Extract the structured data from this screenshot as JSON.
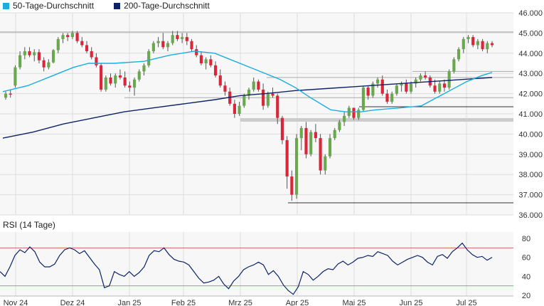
{
  "chart_data": [
    {
      "type": "candlestick",
      "legend": [
        {
          "name": "50-Tage-Durchschnitt",
          "color": "#1aaee0"
        },
        {
          "name": "200-Tage-Durchschnitt",
          "color": "#0d2366"
        }
      ],
      "legend_placement": "top-left",
      "y_axis_side": "right",
      "ylim": [
        36000,
        46000
      ],
      "yticks": [
        "46.000",
        "45.000",
        "44.000",
        "43.000",
        "42.000",
        "41.000",
        "40.000",
        "39.000",
        "38.000",
        "37.000",
        "36.000"
      ],
      "xticks": [
        "Nov 24",
        "Dez 24",
        "Jan 25",
        "Feb 25",
        "Mrz 25",
        "Apr 25",
        "Mai 25",
        "Jun 25",
        "Jul 25"
      ],
      "grid": true,
      "colors": {
        "up": "#6aa84f",
        "down": "#d9263a",
        "wick": "#555555",
        "sma50": "#1aaee0",
        "sma200": "#0d2366",
        "level_line": "#888888"
      },
      "levels": [
        45050,
        43100,
        42800,
        41800,
        41350,
        40700,
        36600
      ],
      "candles": [
        [
          41800,
          42100,
          41700,
          42000
        ],
        [
          42000,
          42200,
          41800,
          41950
        ],
        [
          42400,
          43400,
          42300,
          43300
        ],
        [
          43300,
          44100,
          43200,
          43900
        ],
        [
          43900,
          44300,
          43700,
          44100
        ],
        [
          44100,
          44300,
          43800,
          43900
        ],
        [
          43900,
          44200,
          43600,
          44050
        ],
        [
          44050,
          44200,
          43500,
          43650
        ],
        [
          43650,
          43800,
          43100,
          43300
        ],
        [
          43300,
          43700,
          43200,
          43550
        ],
        [
          43550,
          44200,
          43500,
          44150
        ],
        [
          44150,
          44800,
          44000,
          44700
        ],
        [
          44700,
          45000,
          44500,
          44900
        ],
        [
          44900,
          45000,
          44600,
          44800
        ],
        [
          44800,
          45100,
          44700,
          45000
        ],
        [
          45000,
          45100,
          44500,
          44600
        ],
        [
          44600,
          44800,
          44300,
          44400
        ],
        [
          44400,
          44600,
          44000,
          44100
        ],
        [
          44100,
          44300,
          43700,
          43800
        ],
        [
          43800,
          44000,
          43300,
          43400
        ],
        [
          43400,
          43500,
          42100,
          42200
        ],
        [
          42200,
          42900,
          42100,
          42800
        ],
        [
          42800,
          43000,
          42400,
          42500
        ],
        [
          42500,
          43000,
          42300,
          42900
        ],
        [
          42900,
          43200,
          42700,
          42800
        ],
        [
          42800,
          43100,
          42300,
          42400
        ],
        [
          42400,
          42600,
          42100,
          42300
        ],
        [
          42300,
          42800,
          41900,
          42700
        ],
        [
          42700,
          43200,
          42600,
          43100
        ],
        [
          43100,
          43500,
          42900,
          43400
        ],
        [
          43400,
          44200,
          43300,
          44100
        ],
        [
          44100,
          44600,
          44000,
          44500
        ],
        [
          44500,
          44800,
          44300,
          44600
        ],
        [
          44600,
          45000,
          44200,
          44300
        ],
        [
          44300,
          44600,
          44100,
          44500
        ],
        [
          44500,
          45100,
          44400,
          44900
        ],
        [
          44900,
          45100,
          44600,
          44700
        ],
        [
          44700,
          45000,
          44500,
          44800
        ],
        [
          44800,
          45000,
          44400,
          44600
        ],
        [
          44600,
          44700,
          44100,
          44200
        ],
        [
          44200,
          44400,
          43800,
          43900
        ],
        [
          43900,
          44100,
          43400,
          43500
        ],
        [
          43500,
          43800,
          43200,
          43700
        ],
        [
          43700,
          43900,
          43300,
          43400
        ],
        [
          43400,
          43600,
          42800,
          42900
        ],
        [
          42900,
          43200,
          42300,
          42400
        ],
        [
          42400,
          42600,
          41900,
          42100
        ],
        [
          42100,
          42300,
          41400,
          41500
        ],
        [
          41500,
          41700,
          40800,
          41000
        ],
        [
          41000,
          41600,
          40900,
          41400
        ],
        [
          41400,
          42000,
          41300,
          41900
        ],
        [
          41900,
          42300,
          41700,
          42200
        ],
        [
          42200,
          42800,
          42100,
          42600
        ],
        [
          42600,
          42700,
          42100,
          42200
        ],
        [
          42200,
          42500,
          41200,
          41400
        ],
        [
          41400,
          42100,
          41300,
          42000
        ],
        [
          42000,
          42300,
          41800,
          41900
        ],
        [
          41900,
          42000,
          40500,
          40800
        ],
        [
          40800,
          40900,
          39500,
          39700
        ],
        [
          39700,
          39900,
          37300,
          37900
        ],
        [
          37900,
          38200,
          36700,
          37000
        ],
        [
          37000,
          40000,
          36800,
          39800
        ],
        [
          39800,
          40400,
          39200,
          40300
        ],
        [
          40300,
          40600,
          38800,
          39000
        ],
        [
          39000,
          40200,
          38900,
          40100
        ],
        [
          40100,
          40500,
          39600,
          39800
        ],
        [
          39800,
          40000,
          38000,
          38200
        ],
        [
          38200,
          39000,
          38000,
          38900
        ],
        [
          38900,
          40000,
          38800,
          39800
        ],
        [
          39800,
          40300,
          39700,
          40200
        ],
        [
          40200,
          40700,
          40100,
          40600
        ],
        [
          40600,
          41100,
          40400,
          40900
        ],
        [
          40900,
          41400,
          40800,
          41300
        ],
        [
          41300,
          41300,
          40700,
          40800
        ],
        [
          40800,
          41300,
          40700,
          41200
        ],
        [
          41200,
          42400,
          41100,
          42300
        ],
        [
          42300,
          42400,
          41700,
          41900
        ],
        [
          41900,
          42600,
          41800,
          42500
        ],
        [
          42500,
          42800,
          42300,
          42700
        ],
        [
          42700,
          42900,
          41900,
          42000
        ],
        [
          42000,
          42200,
          41500,
          41600
        ],
        [
          41600,
          42100,
          41500,
          42000
        ],
        [
          42000,
          42500,
          41900,
          42400
        ],
        [
          42400,
          42600,
          42100,
          42500
        ],
        [
          42500,
          42700,
          42000,
          42100
        ],
        [
          42100,
          42600,
          42000,
          42500
        ],
        [
          42500,
          42800,
          42300,
          42700
        ],
        [
          42700,
          43000,
          42600,
          42900
        ],
        [
          42900,
          43100,
          42700,
          42800
        ],
        [
          42800,
          42900,
          42300,
          42400
        ],
        [
          42400,
          42700,
          42000,
          42100
        ],
        [
          42100,
          42600,
          42000,
          42500
        ],
        [
          42500,
          42700,
          42100,
          42300
        ],
        [
          42300,
          43200,
          42200,
          43100
        ],
        [
          43100,
          43800,
          43000,
          43700
        ],
        [
          43700,
          44300,
          43600,
          44200
        ],
        [
          44200,
          44800,
          44000,
          44700
        ],
        [
          44700,
          44900,
          44500,
          44800
        ],
        [
          44800,
          44900,
          44300,
          44400
        ],
        [
          44400,
          44700,
          44200,
          44600
        ],
        [
          44600,
          44700,
          44100,
          44200
        ],
        [
          44200,
          44600,
          44000,
          44500
        ],
        [
          44500,
          44600,
          44300,
          44400
        ]
      ],
      "sma50": [
        [
          0,
          42100
        ],
        [
          0.05,
          42400
        ],
        [
          0.1,
          42900
        ],
        [
          0.14,
          43300
        ],
        [
          0.17,
          43500
        ],
        [
          0.22,
          43500
        ],
        [
          0.28,
          43600
        ],
        [
          0.33,
          43900
        ],
        [
          0.38,
          44100
        ],
        [
          0.42,
          44000
        ],
        [
          0.45,
          43700
        ],
        [
          0.5,
          43200
        ],
        [
          0.55,
          42700
        ],
        [
          0.58,
          42300
        ],
        [
          0.61,
          41800
        ],
        [
          0.65,
          41200
        ],
        [
          0.68,
          41100
        ],
        [
          0.71,
          41100
        ],
        [
          0.74,
          41200
        ],
        [
          0.79,
          41300
        ],
        [
          0.83,
          41400
        ],
        [
          0.86,
          41800
        ],
        [
          0.89,
          42200
        ],
        [
          0.92,
          42600
        ],
        [
          0.95,
          42900
        ],
        [
          0.97,
          43050
        ]
      ],
      "sma200": [
        [
          0,
          39800
        ],
        [
          0.06,
          40100
        ],
        [
          0.12,
          40500
        ],
        [
          0.18,
          40800
        ],
        [
          0.24,
          41100
        ],
        [
          0.3,
          41300
        ],
        [
          0.36,
          41500
        ],
        [
          0.42,
          41700
        ],
        [
          0.47,
          41900
        ],
        [
          0.52,
          42000
        ],
        [
          0.58,
          42150
        ],
        [
          0.64,
          42250
        ],
        [
          0.7,
          42350
        ],
        [
          0.76,
          42450
        ],
        [
          0.82,
          42550
        ],
        [
          0.88,
          42650
        ],
        [
          0.94,
          42750
        ],
        [
          0.97,
          42800
        ]
      ]
    },
    {
      "type": "line",
      "title": "RSI (14 Tage)",
      "y_axis_side": "right",
      "ylim": [
        20,
        85
      ],
      "yticks": [
        "80",
        "60",
        "40",
        "20"
      ],
      "reference_lines": [
        {
          "value": 70,
          "color": "#e06060"
        },
        {
          "value": 30,
          "color": "#6abf6a"
        }
      ],
      "series": [
        {
          "color": "#0d2366",
          "values": [
            45,
            40,
            50,
            62,
            68,
            65,
            71,
            66,
            55,
            50,
            50,
            53,
            62,
            68,
            70,
            68,
            64,
            67,
            60,
            53,
            47,
            28,
            30,
            45,
            42,
            40,
            45,
            40,
            44,
            50,
            62,
            67,
            66,
            70,
            63,
            58,
            56,
            55,
            52,
            45,
            38,
            33,
            34,
            36,
            40,
            32,
            27,
            35,
            40,
            47,
            50,
            52,
            55,
            52,
            42,
            46,
            40,
            31,
            25,
            21,
            29,
            45,
            42,
            36,
            40,
            45,
            48,
            47,
            53,
            56,
            52,
            55,
            59,
            60,
            62,
            61,
            66,
            64,
            62,
            56,
            52,
            55,
            58,
            60,
            62,
            60,
            55,
            52,
            61,
            63,
            59,
            66,
            70,
            75,
            68,
            63,
            60,
            61,
            57,
            60
          ]
        }
      ],
      "rsi_x_start": 0.0,
      "rsi_x_end": 0.97
    }
  ]
}
